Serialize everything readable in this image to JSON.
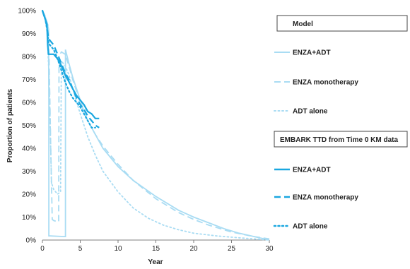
{
  "chart_data": {
    "type": "line",
    "xlabel": "Year",
    "ylabel": "Proportion of patients",
    "xlim": [
      0,
      30
    ],
    "ylim": [
      0,
      100
    ],
    "x_ticks": [
      0,
      5,
      10,
      15,
      20,
      25,
      30
    ],
    "y_ticks": [
      "0%",
      "10%",
      "20%",
      "30%",
      "40%",
      "50%",
      "60%",
      "70%",
      "80%",
      "90%",
      "100%"
    ],
    "grid": false,
    "legend_position": "right",
    "legend_groups": [
      {
        "header": "Model",
        "entries": [
          {
            "name": "ENZA+ADT",
            "series": "model_enza_adt"
          },
          {
            "name": "ENZA monotherapy",
            "series": "model_enza_mono"
          },
          {
            "name": "ADT alone",
            "series": "model_adt"
          }
        ]
      },
      {
        "header": "EMBARK TTD from Time 0 KM data",
        "entries": [
          {
            "name": "ENZA+ADT",
            "series": "km_enza_adt"
          },
          {
            "name": "ENZA monotherapy",
            "series": "km_enza_mono"
          },
          {
            "name": "ADT alone",
            "series": "km_adt"
          }
        ]
      }
    ],
    "colors": {
      "model": "#a9dcf3",
      "km": "#1aa7e0"
    },
    "series": [
      {
        "id": "model_enza_adt",
        "style": "solid",
        "group": "model",
        "points": [
          [
            0,
            100
          ],
          [
            0.3,
            98
          ],
          [
            0.6,
            95
          ],
          [
            0.8,
            92
          ],
          [
            0.85,
            60
          ],
          [
            0.85,
            1.8
          ],
          [
            1,
            1.8
          ],
          [
            3,
            1.5
          ],
          [
            3.05,
            1.5
          ],
          [
            3.05,
            83
          ],
          [
            3.5,
            77
          ],
          [
            4,
            71
          ],
          [
            4.5,
            66
          ],
          [
            5,
            61
          ],
          [
            5.5,
            56
          ],
          [
            6,
            52
          ],
          [
            6.5,
            49
          ],
          [
            7,
            46
          ],
          [
            8,
            40
          ],
          [
            9,
            36
          ],
          [
            10,
            32
          ],
          [
            12,
            26
          ],
          [
            15,
            19
          ],
          [
            18,
            13
          ],
          [
            20,
            10
          ],
          [
            22,
            7.5
          ],
          [
            24,
            5
          ],
          [
            26,
            3
          ],
          [
            28,
            1.5
          ],
          [
            30,
            0
          ]
        ]
      },
      {
        "id": "model_enza_mono",
        "style": "dashed",
        "group": "model",
        "points": [
          [
            0,
            100
          ],
          [
            0.3,
            98
          ],
          [
            0.6,
            95
          ],
          [
            0.8,
            93
          ],
          [
            1.1,
            40
          ],
          [
            1.3,
            9
          ],
          [
            1.5,
            8.5
          ],
          [
            2,
            8
          ],
          [
            2.15,
            8
          ],
          [
            2.2,
            80
          ],
          [
            2.5,
            82
          ],
          [
            3,
            81
          ],
          [
            3.5,
            76
          ],
          [
            4,
            70
          ],
          [
            5,
            60
          ],
          [
            6,
            52
          ],
          [
            7,
            46
          ],
          [
            8,
            41
          ],
          [
            10,
            33
          ],
          [
            12,
            26
          ],
          [
            15,
            18
          ],
          [
            18,
            12
          ],
          [
            20,
            9
          ],
          [
            22,
            6.5
          ],
          [
            25,
            3.5
          ],
          [
            28,
            1.5
          ],
          [
            30,
            0.5
          ]
        ]
      },
      {
        "id": "model_adt",
        "style": "dotted",
        "group": "model",
        "points": [
          [
            0,
            100
          ],
          [
            0.3,
            97
          ],
          [
            0.6,
            93
          ],
          [
            0.9,
            70
          ],
          [
            1.2,
            25
          ],
          [
            1.5,
            22
          ],
          [
            2,
            20
          ],
          [
            2.4,
            21
          ],
          [
            2.5,
            78
          ],
          [
            3,
            76
          ],
          [
            3.5,
            72
          ],
          [
            4,
            66
          ],
          [
            5,
            55
          ],
          [
            6,
            45
          ],
          [
            7,
            37
          ],
          [
            8,
            30
          ],
          [
            10,
            21
          ],
          [
            12,
            14
          ],
          [
            14,
            9.5
          ],
          [
            16,
            6.5
          ],
          [
            18,
            4.5
          ],
          [
            20,
            3
          ],
          [
            23,
            1.8
          ],
          [
            26,
            1
          ],
          [
            30,
            0
          ]
        ]
      },
      {
        "id": "km_enza_adt",
        "style": "solid",
        "group": "km",
        "points": [
          [
            0,
            100
          ],
          [
            0.2,
            98
          ],
          [
            0.4,
            96
          ],
          [
            0.6,
            94
          ],
          [
            0.7,
            85
          ],
          [
            0.8,
            81
          ],
          [
            1,
            81
          ],
          [
            1.5,
            81
          ],
          [
            2,
            79
          ],
          [
            2.5,
            76
          ],
          [
            3,
            72
          ],
          [
            3.5,
            69
          ],
          [
            4,
            66
          ],
          [
            4.5,
            63
          ],
          [
            5,
            61
          ],
          [
            5.5,
            59
          ],
          [
            6,
            56
          ],
          [
            6.5,
            55
          ],
          [
            7,
            53
          ],
          [
            7.5,
            53
          ]
        ]
      },
      {
        "id": "km_enza_mono",
        "style": "dashed",
        "group": "km",
        "points": [
          [
            0,
            100
          ],
          [
            0.2,
            98
          ],
          [
            0.4,
            96
          ],
          [
            0.6,
            93
          ],
          [
            0.8,
            88
          ],
          [
            1,
            87
          ],
          [
            1.5,
            85
          ],
          [
            2,
            81
          ],
          [
            2.5,
            77
          ],
          [
            3,
            73
          ],
          [
            3.5,
            70
          ],
          [
            4,
            66
          ],
          [
            4.5,
            62
          ],
          [
            5,
            59
          ],
          [
            5.5,
            57
          ],
          [
            6,
            54
          ],
          [
            6.5,
            52
          ],
          [
            7,
            50
          ],
          [
            7.5,
            49
          ]
        ]
      },
      {
        "id": "km_adt",
        "style": "dotted",
        "group": "km",
        "points": [
          [
            0,
            100
          ],
          [
            0.2,
            98
          ],
          [
            0.4,
            96
          ],
          [
            0.6,
            92
          ],
          [
            0.8,
            86
          ],
          [
            1,
            85
          ],
          [
            1.5,
            83
          ],
          [
            2,
            79
          ],
          [
            2.5,
            74
          ],
          [
            3,
            69
          ],
          [
            3.5,
            65
          ],
          [
            4,
            62
          ],
          [
            4.5,
            60
          ],
          [
            5,
            58
          ],
          [
            5.5,
            55
          ],
          [
            6,
            52
          ],
          [
            6.5,
            49
          ],
          [
            7,
            49
          ]
        ]
      }
    ]
  }
}
